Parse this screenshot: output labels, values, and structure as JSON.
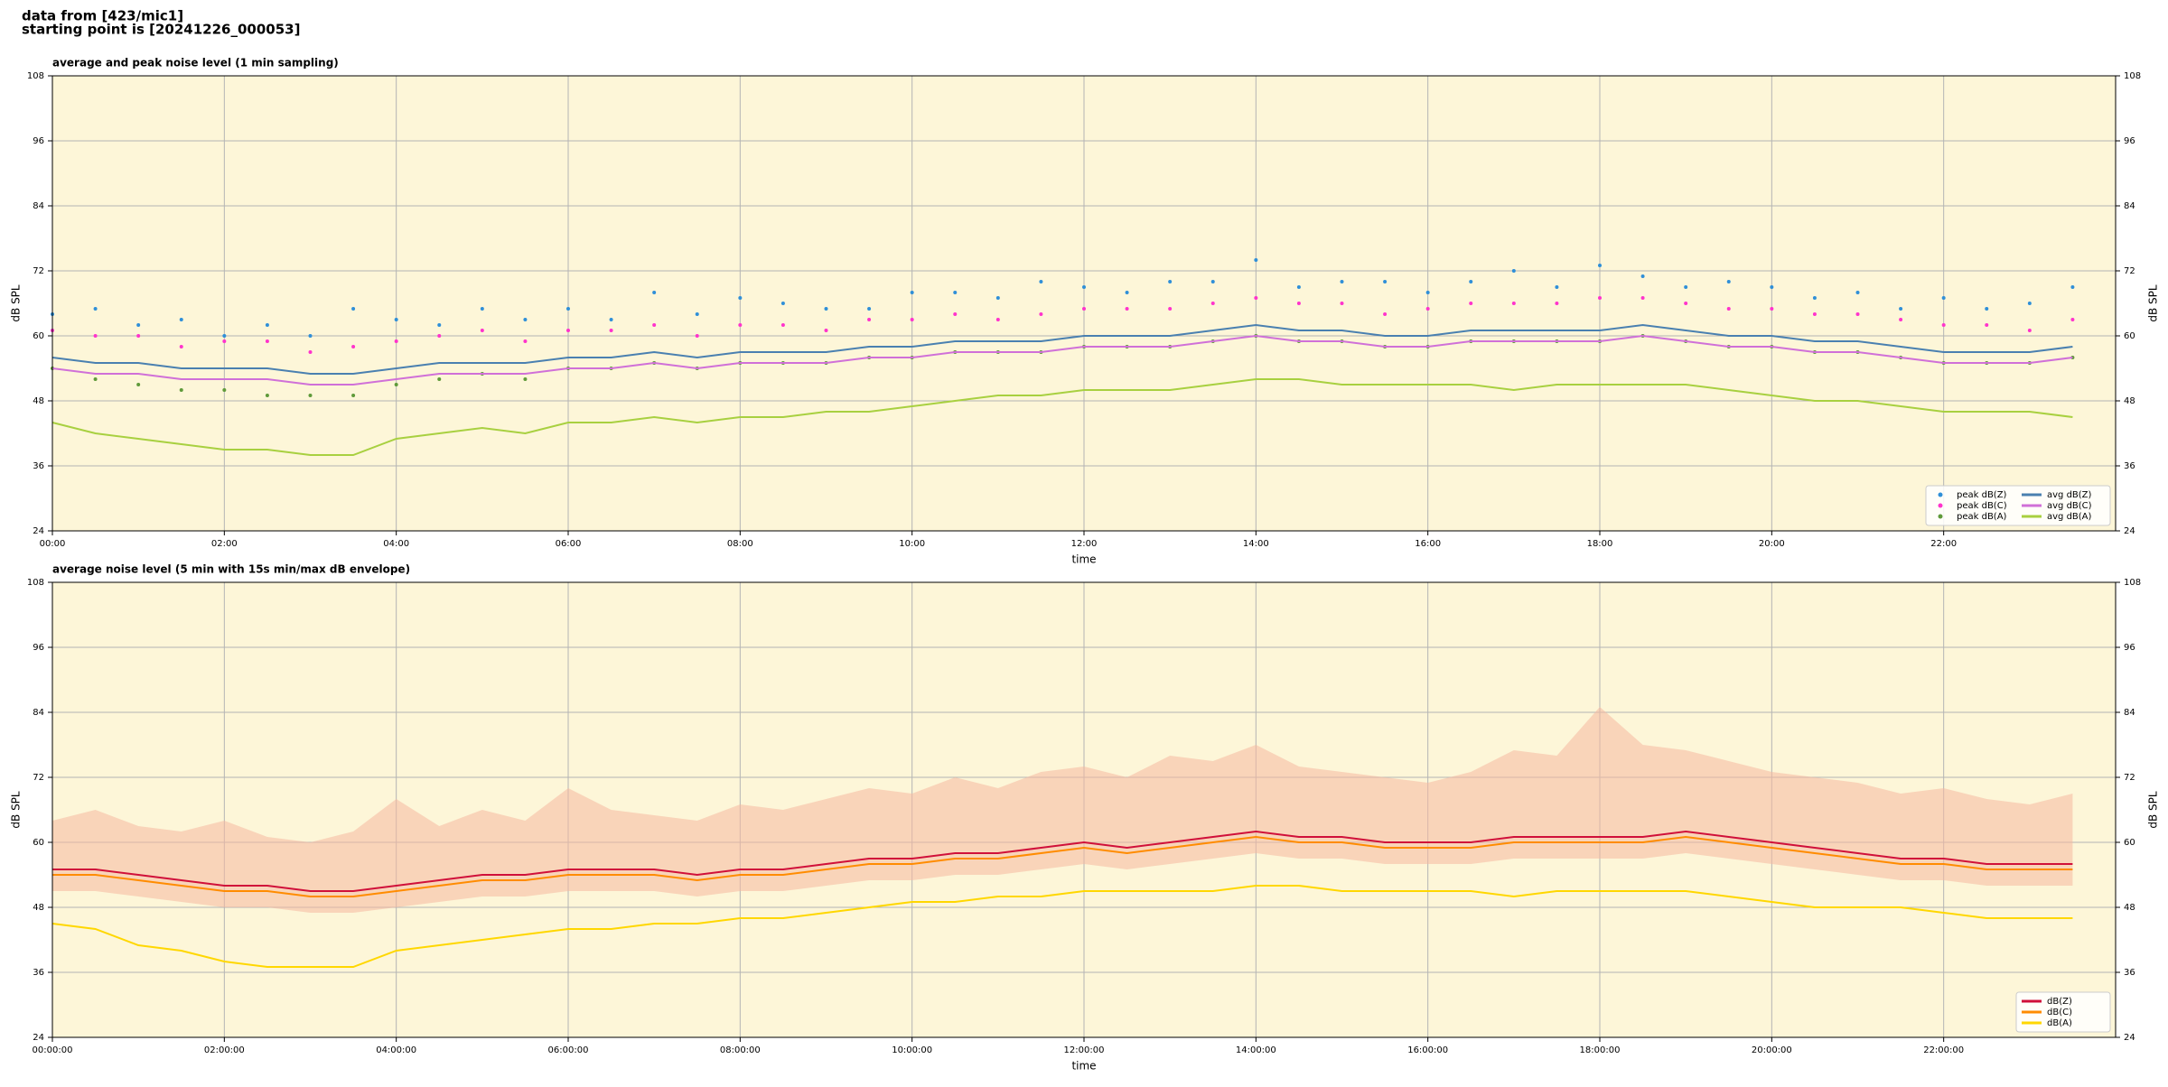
{
  "header": {
    "line1": "data from [423/mic1]",
    "line2": "starting point is [20241226_000053]"
  },
  "chart_data": [
    {
      "type": "line",
      "title": "average and peak noise level (1 min sampling)",
      "xlabel": "time",
      "ylabel": "dB SPL",
      "x": [
        0,
        0.5,
        1,
        1.5,
        2,
        2.5,
        3,
        3.5,
        4,
        4.5,
        5,
        5.5,
        6,
        6.5,
        7,
        7.5,
        8,
        8.5,
        9,
        9.5,
        10,
        10.5,
        11,
        11.5,
        12,
        12.5,
        13,
        13.5,
        14,
        14.5,
        15,
        15.5,
        16,
        16.5,
        17,
        17.5,
        18,
        18.5,
        19,
        19.5,
        20,
        20.5,
        21,
        21.5,
        22,
        22.5,
        23,
        23.5
      ],
      "xlim": [
        0,
        24
      ],
      "xticks": [
        {
          "value": 0,
          "label": "00:00"
        },
        {
          "value": 2,
          "label": "02:00"
        },
        {
          "value": 4,
          "label": "04:00"
        },
        {
          "value": 6,
          "label": "06:00"
        },
        {
          "value": 8,
          "label": "08:00"
        },
        {
          "value": 10,
          "label": "10:00"
        },
        {
          "value": 12,
          "label": "12:00"
        },
        {
          "value": 14,
          "label": "14:00"
        },
        {
          "value": 16,
          "label": "16:00"
        },
        {
          "value": 18,
          "label": "18:00"
        },
        {
          "value": 20,
          "label": "20:00"
        },
        {
          "value": 22,
          "label": "22:00"
        }
      ],
      "ylim": [
        24,
        108
      ],
      "yticks": [
        24,
        36,
        48,
        60,
        72,
        84,
        96,
        108
      ],
      "grid": true,
      "legend": "lower right",
      "legend_columns": 2,
      "series": [
        {
          "name": "peak dB(Z)",
          "color": "#2f8fd8",
          "mode": "markers",
          "values": [
            64,
            65,
            62,
            63,
            60,
            62,
            60,
            65,
            63,
            62,
            65,
            63,
            65,
            63,
            68,
            64,
            67,
            66,
            65,
            65,
            68,
            68,
            67,
            70,
            69,
            68,
            70,
            70,
            74,
            69,
            70,
            70,
            68,
            70,
            72,
            69,
            73,
            71,
            69,
            70,
            69,
            67,
            68,
            65,
            67,
            65,
            66,
            69
          ]
        },
        {
          "name": "peak dB(C)",
          "color": "#ff33cc",
          "mode": "markers",
          "values": [
            61,
            60,
            60,
            58,
            59,
            59,
            57,
            58,
            59,
            60,
            61,
            59,
            61,
            61,
            62,
            60,
            62,
            62,
            61,
            63,
            63,
            64,
            63,
            64,
            65,
            65,
            65,
            66,
            67,
            66,
            66,
            64,
            65,
            66,
            66,
            66,
            67,
            67,
            66,
            65,
            65,
            64,
            64,
            63,
            62,
            62,
            61,
            63
          ]
        },
        {
          "name": "peak dB(A)",
          "color": "#5f9a3a",
          "mode": "markers",
          "values": [
            54,
            52,
            51,
            50,
            50,
            49,
            49,
            49,
            51,
            52,
            53,
            52,
            54,
            54,
            55,
            54,
            55,
            55,
            55,
            56,
            56,
            57,
            57,
            57,
            58,
            58,
            58,
            59,
            60,
            59,
            59,
            58,
            58,
            59,
            59,
            59,
            59,
            60,
            59,
            58,
            58,
            57,
            57,
            56,
            55,
            55,
            55,
            56
          ]
        },
        {
          "name": "avg dB(Z)",
          "color": "#4a80b0",
          "mode": "lines",
          "values": [
            56,
            55,
            55,
            54,
            54,
            54,
            53,
            53,
            54,
            55,
            55,
            55,
            56,
            56,
            57,
            56,
            57,
            57,
            57,
            58,
            58,
            59,
            59,
            59,
            60,
            60,
            60,
            61,
            62,
            61,
            61,
            60,
            60,
            61,
            61,
            61,
            61,
            62,
            61,
            60,
            60,
            59,
            59,
            58,
            57,
            57,
            57,
            58
          ]
        },
        {
          "name": "avg dB(C)",
          "color": "#d070d8",
          "mode": "lines",
          "values": [
            54,
            53,
            53,
            52,
            52,
            52,
            51,
            51,
            52,
            53,
            53,
            53,
            54,
            54,
            55,
            54,
            55,
            55,
            55,
            56,
            56,
            57,
            57,
            57,
            58,
            58,
            58,
            59,
            60,
            59,
            59,
            58,
            58,
            59,
            59,
            59,
            59,
            60,
            59,
            58,
            58,
            57,
            57,
            56,
            55,
            55,
            55,
            56
          ]
        },
        {
          "name": "avg dB(A)",
          "color": "#a8d040",
          "mode": "lines",
          "values": [
            44,
            42,
            41,
            40,
            39,
            39,
            38,
            38,
            41,
            42,
            43,
            42,
            44,
            44,
            45,
            44,
            45,
            45,
            46,
            46,
            47,
            48,
            49,
            49,
            50,
            50,
            50,
            51,
            52,
            52,
            51,
            51,
            51,
            51,
            50,
            51,
            51,
            51,
            51,
            50,
            49,
            48,
            48,
            47,
            46,
            46,
            46,
            45
          ]
        }
      ]
    },
    {
      "type": "line",
      "title": "average noise level (5 min with 15s min/max dB envelope)",
      "xlabel": "time",
      "ylabel": "dB SPL",
      "x": [
        0,
        0.5,
        1,
        1.5,
        2,
        2.5,
        3,
        3.5,
        4,
        4.5,
        5,
        5.5,
        6,
        6.5,
        7,
        7.5,
        8,
        8.5,
        9,
        9.5,
        10,
        10.5,
        11,
        11.5,
        12,
        12.5,
        13,
        13.5,
        14,
        14.5,
        15,
        15.5,
        16,
        16.5,
        17,
        17.5,
        18,
        18.5,
        19,
        19.5,
        20,
        20.5,
        21,
        21.5,
        22,
        22.5,
        23,
        23.5
      ],
      "xlim": [
        0,
        24
      ],
      "xticks": [
        {
          "value": 0,
          "label": "00:00:00"
        },
        {
          "value": 2,
          "label": "02:00:00"
        },
        {
          "value": 4,
          "label": "04:00:00"
        },
        {
          "value": 6,
          "label": "06:00:00"
        },
        {
          "value": 8,
          "label": "08:00:00"
        },
        {
          "value": 10,
          "label": "10:00:00"
        },
        {
          "value": 12,
          "label": "12:00:00"
        },
        {
          "value": 14,
          "label": "14:00:00"
        },
        {
          "value": 16,
          "label": "16:00:00"
        },
        {
          "value": 18,
          "label": "18:00:00"
        },
        {
          "value": 20,
          "label": "20:00:00"
        },
        {
          "value": 22,
          "label": "22:00:00"
        }
      ],
      "ylim": [
        24,
        108
      ],
      "yticks": [
        24,
        36,
        48,
        60,
        72,
        84,
        96,
        108
      ],
      "grid": true,
      "legend": "lower right",
      "legend_columns": 1,
      "envelope": {
        "color": "#f5b8a0",
        "min": [
          51,
          51,
          50,
          49,
          48,
          48,
          47,
          47,
          48,
          49,
          50,
          50,
          51,
          51,
          51,
          50,
          51,
          51,
          52,
          53,
          53,
          54,
          54,
          55,
          56,
          55,
          56,
          57,
          58,
          57,
          57,
          56,
          56,
          56,
          57,
          57,
          57,
          57,
          58,
          57,
          56,
          55,
          54,
          53,
          53,
          52,
          52,
          52
        ],
        "max": [
          64,
          66,
          63,
          62,
          64,
          61,
          60,
          62,
          68,
          63,
          66,
          64,
          70,
          66,
          65,
          64,
          67,
          66,
          68,
          70,
          69,
          72,
          70,
          73,
          74,
          72,
          76,
          75,
          78,
          74,
          73,
          72,
          71,
          73,
          77,
          76,
          85,
          78,
          77,
          75,
          73,
          72,
          71,
          69,
          70,
          68,
          67,
          69
        ]
      },
      "series": [
        {
          "name": "dB(Z)",
          "color": "#d0103a",
          "mode": "lines",
          "values": [
            55,
            55,
            54,
            53,
            52,
            52,
            51,
            51,
            52,
            53,
            54,
            54,
            55,
            55,
            55,
            54,
            55,
            55,
            56,
            57,
            57,
            58,
            58,
            59,
            60,
            59,
            60,
            61,
            62,
            61,
            61,
            60,
            60,
            60,
            61,
            61,
            61,
            61,
            62,
            61,
            60,
            59,
            58,
            57,
            57,
            56,
            56,
            56
          ]
        },
        {
          "name": "dB(C)",
          "color": "#ff8c00",
          "mode": "lines",
          "values": [
            54,
            54,
            53,
            52,
            51,
            51,
            50,
            50,
            51,
            52,
            53,
            53,
            54,
            54,
            54,
            53,
            54,
            54,
            55,
            56,
            56,
            57,
            57,
            58,
            59,
            58,
            59,
            60,
            61,
            60,
            60,
            59,
            59,
            59,
            60,
            60,
            60,
            60,
            61,
            60,
            59,
            58,
            57,
            56,
            56,
            55,
            55,
            55
          ]
        },
        {
          "name": "dB(A)",
          "color": "#ffd700",
          "mode": "lines",
          "values": [
            45,
            44,
            41,
            40,
            38,
            37,
            37,
            37,
            40,
            41,
            42,
            43,
            44,
            44,
            45,
            45,
            46,
            46,
            47,
            48,
            49,
            49,
            50,
            50,
            51,
            51,
            51,
            51,
            52,
            52,
            51,
            51,
            51,
            51,
            50,
            51,
            51,
            51,
            51,
            50,
            49,
            48,
            48,
            48,
            47,
            46,
            46,
            46
          ]
        }
      ]
    }
  ]
}
